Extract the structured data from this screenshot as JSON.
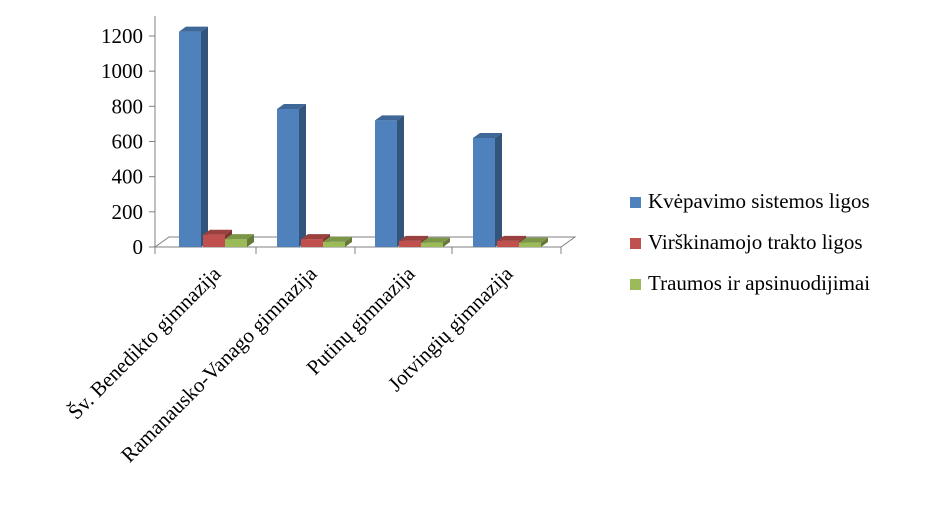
{
  "chart_data": {
    "type": "bar",
    "title": "",
    "xlabel": "",
    "ylabel": "",
    "categories": [
      "Šv. Benedikto gimnazija",
      "Ramanausko-Vanago gimnazija",
      "Putinų gimnazija",
      "Jotvingių gimnazija"
    ],
    "series": [
      {
        "name": "Kvėpavimo sistemos ligos",
        "values": [
          1225,
          785,
          720,
          620
        ],
        "color": "#4F81BD"
      },
      {
        "name": "Virškinamojo trakto ligos",
        "values": [
          70,
          45,
          35,
          35
        ],
        "color": "#C0504D"
      },
      {
        "name": "Traumos ir apsinuodijimai",
        "values": [
          45,
          30,
          25,
          25
        ],
        "color": "#9BBB59"
      }
    ],
    "ylim": [
      0,
      1200
    ],
    "yticks": [
      0,
      200,
      400,
      600,
      800,
      1000,
      1200
    ],
    "three_d": true,
    "grid": false,
    "legend_position": "right"
  }
}
